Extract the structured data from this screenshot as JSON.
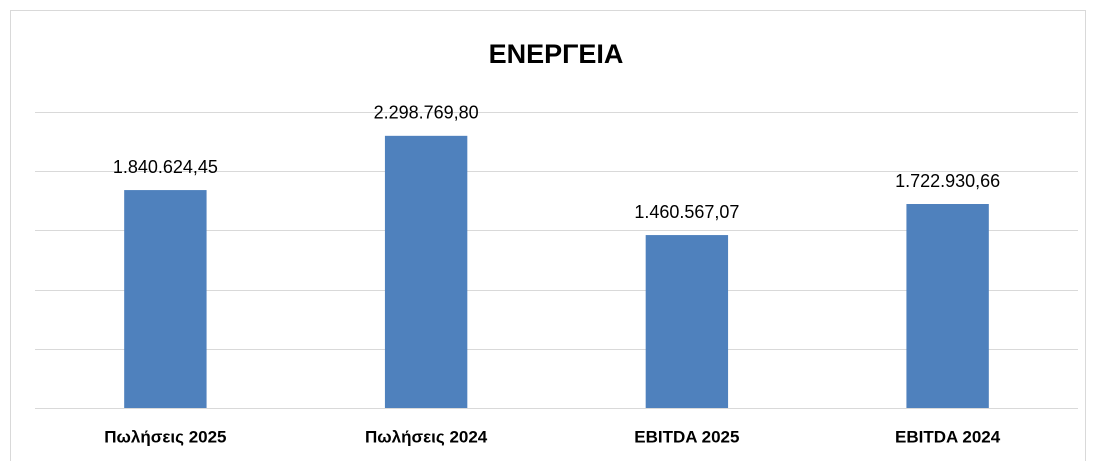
{
  "chart_data": {
    "type": "bar",
    "title": "ΕΝΕΡΓΕΙΑ",
    "categories": [
      "Πωλήσεις 2025",
      "Πωλήσεις 2024",
      "EBITDA 2025",
      "EBITDA 2024"
    ],
    "values": [
      1840624.45,
      2298769.8,
      1460567.07,
      1722930.66
    ],
    "value_labels": [
      "1.840.624,45",
      "2.298.769,80",
      "1.460.567,07",
      "1.722.930,66"
    ],
    "color": "#4f81bd",
    "ylim": [
      0,
      2500000
    ],
    "yticks": [
      0,
      500000,
      1000000,
      1500000,
      2000000,
      2500000
    ],
    "grid": true
  }
}
